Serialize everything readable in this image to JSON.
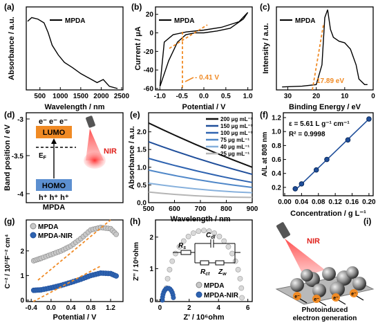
{
  "panels": {
    "a": {
      "letter": "(a)",
      "legend": "MPDA",
      "xlabel": "Wavelength / nm",
      "ylabel": "Absorbance / a.u.",
      "xticks": [
        "500",
        "1000",
        "1500",
        "2000",
        "2500"
      ]
    },
    "b": {
      "letter": "(b)",
      "legend": "MPDA",
      "xlabel": "Potential / V",
      "ylabel": "Current / μA",
      "xticks": [
        "-1.0",
        "-0.5",
        "0.0",
        "0.5",
        "1.0"
      ],
      "yticks": [
        "20",
        "0",
        "-20",
        "-40",
        "-60"
      ],
      "annotation": "- 0.41 V"
    },
    "c": {
      "letter": "(c)",
      "legend": "MPDA",
      "xlabel": "Binding Energy / eV",
      "ylabel": "Intensity / a.u.",
      "xticks": [
        "30",
        "20",
        "10",
        "0"
      ],
      "annotation": "17.89 eV"
    },
    "d": {
      "letter": "(d)",
      "ylabel": "Band position / eV",
      "yticks": [
        "-3",
        "-3.5",
        "-4"
      ],
      "lumo": "LUMO",
      "homo": "HOMO",
      "ef": "E",
      "ef_sub": "F",
      "electrons": "e⁻ e⁻ e⁻",
      "holes": "h⁺ h⁺ h⁺",
      "caption": "MPDA",
      "nir": "NIR"
    },
    "e": {
      "letter": "(e)",
      "xlabel": "Wavelength / nm",
      "ylabel": "Absorbance / a.u.",
      "xticks": [
        "500",
        "600",
        "700",
        "800",
        "900"
      ],
      "yticks": [
        "0.0",
        "0.5",
        "1.0",
        "1.5",
        "2.0"
      ]
    },
    "f": {
      "letter": "(f)",
      "xlabel": "Concentration / g L⁻¹",
      "ylabel": "A/L at 808 nm",
      "xticks": [
        "0.00",
        "0.04",
        "0.08",
        "0.12",
        "0.16",
        "0.20"
      ],
      "yticks": [
        "0.2",
        "0.4",
        "0.6",
        "0.8",
        "1.0",
        "1.2"
      ],
      "eq1": "ε = 5.61 L g⁻¹ cm⁻¹",
      "eq2": "R² = 0.9998"
    },
    "g": {
      "letter": "(g)",
      "xlabel": "Potential / V",
      "ylabel": "C⁻² / 10¹²F⁻² cm⁴",
      "xticks": [
        "-0.4",
        "0.0",
        "0.4",
        "0.8",
        "1.2"
      ],
      "yticks": [
        "0",
        "1",
        "2"
      ],
      "legend1": "MPDA",
      "legend2": "MPDA-NIR"
    },
    "h": {
      "letter": "(h)",
      "xlabel": "Z' / 10⁶ohm",
      "ylabel": "Z'' / 10⁶ohm",
      "xticks": [
        "0",
        "2",
        "4",
        "6"
      ],
      "yticks": [
        "0",
        "1",
        "2"
      ],
      "legend1": "MPDA",
      "legend2": "MPDA-NIR",
      "rs": "R",
      "rs_sub": "s",
      "cdl": "C",
      "cdl_sub": "dl",
      "rct": "R",
      "rct_sub": "ct",
      "zw": "Z",
      "zw_sub": "w"
    },
    "i": {
      "letter": "(i)",
      "nir": "NIR",
      "caption1": "Photoinduced",
      "caption2": "electron generation",
      "electron": "e⁻"
    }
  },
  "chart_data": [
    {
      "type": "line",
      "title": "",
      "xlabel": "Wavelength / nm",
      "ylabel": "Absorbance / a.u.",
      "series": [
        {
          "name": "MPDA",
          "x": [
            200,
            300,
            450,
            600,
            700,
            800,
            950,
            1100,
            1300,
            1500,
            1700,
            1900,
            2050,
            2200,
            2400
          ],
          "y": [
            0.9,
            0.95,
            0.93,
            0.88,
            0.75,
            0.58,
            0.45,
            0.35,
            0.28,
            0.2,
            0.14,
            0.08,
            0.12,
            0.03,
            0.0
          ]
        }
      ]
    },
    {
      "type": "line",
      "xlabel": "Potential / V",
      "ylabel": "Current / μA",
      "ylim": [
        -60,
        25
      ],
      "series": [
        {
          "name": "MPDA",
          "x": [
            -1.0,
            -0.8,
            -0.6,
            -0.41,
            -0.2,
            0.0,
            0.3,
            0.6,
            0.9,
            1.0,
            0.8,
            0.4,
            0.0,
            -0.4,
            -0.7,
            -0.9,
            -1.0
          ],
          "y": [
            -58,
            -30,
            -10,
            -2,
            0,
            0,
            2,
            5,
            15,
            22,
            12,
            6,
            3,
            1,
            -2,
            -10,
            -58
          ]
        }
      ]
    },
    {
      "type": "line",
      "xlabel": "Binding Energy / eV",
      "ylabel": "Intensity / a.u.",
      "series": [
        {
          "name": "MPDA",
          "x": [
            32,
            25,
            20,
            18,
            17,
            16,
            15,
            14,
            12,
            10,
            8,
            6,
            5,
            3,
            2
          ],
          "y": [
            0.02,
            0.03,
            0.05,
            0.3,
            0.9,
            1.0,
            0.75,
            0.65,
            0.6,
            0.58,
            0.5,
            0.3,
            0.12,
            0.05,
            0.05
          ]
        }
      ]
    },
    {
      "type": "line",
      "xlabel": "Wavelength / nm",
      "ylabel": "Absorbance / a.u.",
      "ylim": [
        0,
        2.3
      ],
      "x": [
        500,
        900
      ],
      "series": [
        {
          "name": "200 μg mL⁻¹",
          "y": [
            2.25,
            1.0
          ],
          "color": "#111111"
        },
        {
          "name": "150 μg mL⁻¹",
          "y": [
            1.72,
            0.8
          ],
          "color": "#1f4e9a"
        },
        {
          "name": "100 μg mL⁻¹",
          "y": [
            1.25,
            0.57
          ],
          "color": "#2e63b0"
        },
        {
          "name": "75 μg mL⁻¹",
          "y": [
            0.92,
            0.43
          ],
          "color": "#4f87c8"
        },
        {
          "name": "40 μg mL⁻¹",
          "y": [
            0.55,
            0.28
          ],
          "color": "#86b0dc"
        },
        {
          "name": "25 μg mL⁻¹",
          "y": [
            0.3,
            0.15
          ],
          "color": "#b5b5b5"
        }
      ]
    },
    {
      "type": "scatter",
      "xlabel": "Concentration / g L⁻¹",
      "ylabel": "A/L at 808 nm",
      "xlim": [
        0,
        0.2
      ],
      "ylim": [
        0.1,
        1.25
      ],
      "series": [
        {
          "name": "",
          "x": [
            0.025,
            0.04,
            0.075,
            0.1,
            0.15,
            0.2
          ],
          "y": [
            0.18,
            0.25,
            0.45,
            0.6,
            0.88,
            1.18
          ]
        }
      ]
    },
    {
      "type": "scatter",
      "xlabel": "Potential / V",
      "ylabel": "C⁻² / 10¹²F⁻² cm⁴",
      "series": [
        {
          "name": "MPDA",
          "x": [
            -0.35,
            -0.2,
            0.0,
            0.2,
            0.4,
            0.6,
            0.8,
            1.0,
            1.2,
            1.35
          ],
          "y": [
            1.6,
            1.7,
            1.85,
            2.0,
            2.2,
            2.5,
            2.85,
            2.95,
            2.9,
            2.6
          ]
        },
        {
          "name": "MPDA-NIR",
          "x": [
            -0.35,
            -0.2,
            0.0,
            0.2,
            0.4,
            0.6,
            0.8,
            1.0,
            1.2,
            1.35
          ],
          "y": [
            0.4,
            0.42,
            0.5,
            0.6,
            0.72,
            0.85,
            1.0,
            1.1,
            1.08,
            0.95
          ]
        }
      ]
    },
    {
      "type": "scatter",
      "xlabel": "Z' / 10⁶ohm",
      "ylabel": "Z'' / 10⁶ohm",
      "series": [
        {
          "name": "MPDA",
          "x": [
            0.5,
            1.0,
            2.0,
            3.0,
            4.0,
            5.0,
            5.5
          ],
          "y": [
            0.3,
            1.3,
            2.05,
            2.2,
            2.05,
            1.3,
            0.3
          ]
        },
        {
          "name": "MPDA-NIR",
          "x": [
            0.2,
            0.35,
            0.55,
            0.75,
            0.9
          ],
          "y": [
            0.05,
            0.3,
            0.4,
            0.3,
            0.05
          ]
        }
      ]
    }
  ]
}
